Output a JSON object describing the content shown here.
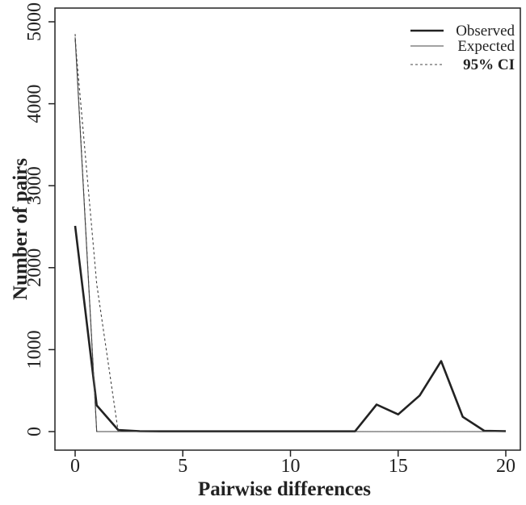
{
  "chart_data": {
    "type": "line",
    "xlabel": "Pairwise differences",
    "ylabel": "Number of pairs",
    "xlim": [
      0,
      20
    ],
    "ylim": [
      0,
      5000
    ],
    "x_ticks": [
      0,
      5,
      10,
      15,
      20
    ],
    "y_ticks": [
      0,
      1000,
      2000,
      3000,
      4000,
      5000
    ],
    "grid": false,
    "legend_position": "top-right",
    "series": [
      {
        "name": "Observed",
        "style": "solid-thick",
        "color": "#222222",
        "x": [
          0,
          1,
          2,
          3,
          4,
          5,
          6,
          7,
          8,
          9,
          10,
          11,
          12,
          13,
          14,
          15,
          16,
          17,
          18,
          19,
          20
        ],
        "values": [
          2510,
          320,
          20,
          5,
          3,
          3,
          3,
          3,
          3,
          3,
          3,
          3,
          3,
          3,
          330,
          210,
          440,
          860,
          180,
          10,
          5
        ]
      },
      {
        "name": "Expected",
        "style": "solid-thin",
        "color": "#444444",
        "x": [
          0,
          1,
          2,
          3,
          4,
          5,
          6,
          7,
          8,
          9,
          10,
          11,
          12,
          13,
          14,
          15,
          16,
          17,
          18,
          19,
          20
        ],
        "values": [
          4810,
          0,
          0,
          0,
          0,
          0,
          0,
          0,
          0,
          0,
          0,
          0,
          0,
          0,
          0,
          0,
          0,
          0,
          0,
          0,
          0
        ]
      },
      {
        "name": "95% CI",
        "style": "dashed",
        "color": "#444444",
        "x": [
          0,
          1,
          2,
          3,
          4,
          5,
          6,
          7,
          8,
          9,
          10,
          11,
          12,
          13,
          14,
          15,
          16,
          17,
          18,
          19,
          20
        ],
        "values": [
          4850,
          0,
          0,
          0,
          0,
          0,
          0,
          0,
          0,
          0,
          0,
          0,
          0,
          0,
          0,
          0,
          0,
          0,
          0,
          0,
          0
        ]
      },
      {
        "name": "",
        "style": "dashed",
        "color": "#444444",
        "x": [
          0,
          1,
          2,
          3,
          4,
          5,
          6,
          7,
          8,
          9,
          10,
          11,
          12,
          13,
          14,
          15,
          16,
          17,
          18,
          19,
          20
        ],
        "values": [
          4780,
          1800,
          0,
          0,
          0,
          0,
          0,
          0,
          0,
          0,
          0,
          0,
          0,
          0,
          0,
          0,
          0,
          0,
          0,
          0,
          0
        ]
      }
    ]
  }
}
